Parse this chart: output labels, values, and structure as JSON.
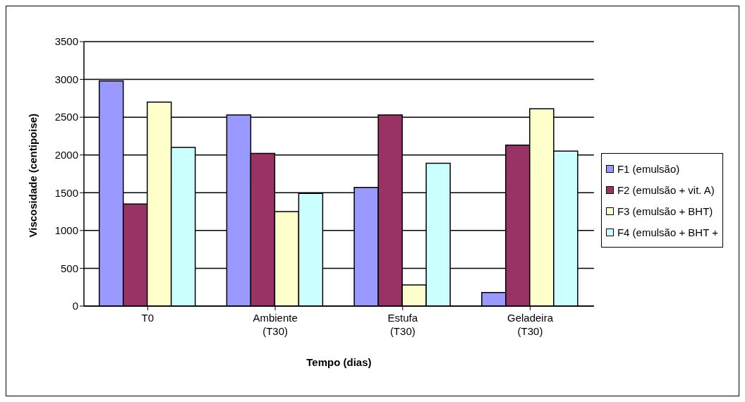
{
  "chart_data": {
    "type": "bar",
    "xlabel": "Tempo (dias)",
    "ylabel": "Viscosidade (centipoise)",
    "categories": [
      "T0",
      "Ambiente (T30)",
      "Estufa (T30)",
      "Geladeira (T30)"
    ],
    "series": [
      {
        "name": "F1 (emulsão)",
        "color": "#9999ff",
        "values": [
          2980,
          2530,
          1570,
          180
        ]
      },
      {
        "name": "F2 (emulsão + vit. A)",
        "color": "#993366",
        "values": [
          1350,
          2020,
          2530,
          2130
        ]
      },
      {
        "name": "F3 (emulsão + BHT)",
        "color": "#ffffcc",
        "values": [
          2700,
          1250,
          280,
          2610
        ]
      },
      {
        "name": "F4 (emulsão + BHT +",
        "color": "#ccffff",
        "values": [
          2100,
          1490,
          1890,
          2050
        ]
      }
    ],
    "ylim": [
      0,
      3500
    ],
    "yticks": [
      0,
      500,
      1000,
      1500,
      2000,
      2500,
      3000,
      3500
    ],
    "grid": "y",
    "legend": "right"
  }
}
